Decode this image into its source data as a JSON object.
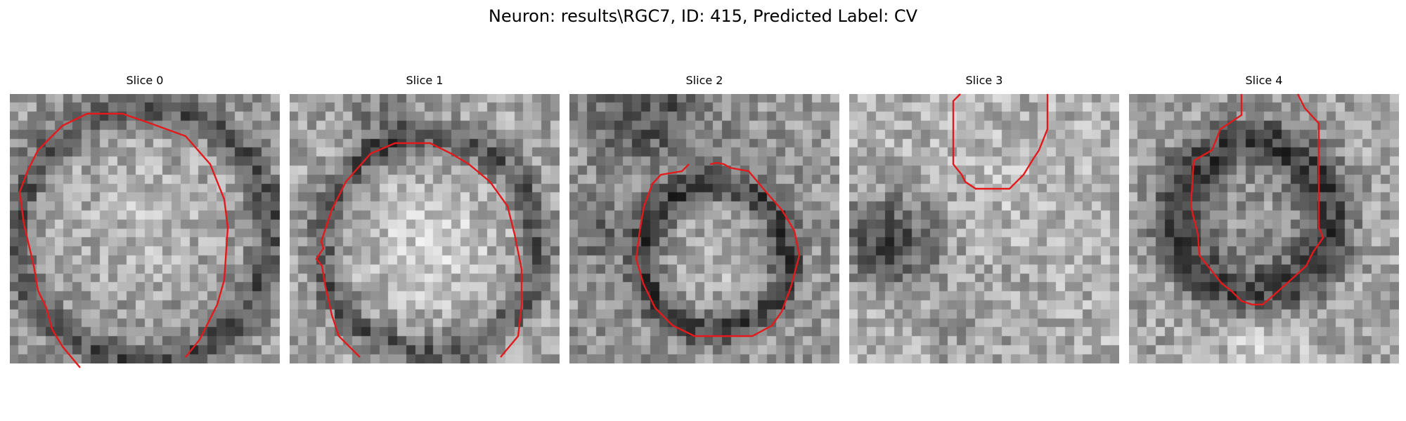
{
  "figure": {
    "title": "Neuron: results\\RGC7, ID: 415, Predicted Label: CV"
  },
  "colors": {
    "contour": "#e31a1c"
  },
  "slices": [
    {
      "label": "Slice 0"
    },
    {
      "label": "Slice 1"
    },
    {
      "label": "Slice 2"
    },
    {
      "label": "Slice 3"
    },
    {
      "label": "Slice 4"
    }
  ]
}
